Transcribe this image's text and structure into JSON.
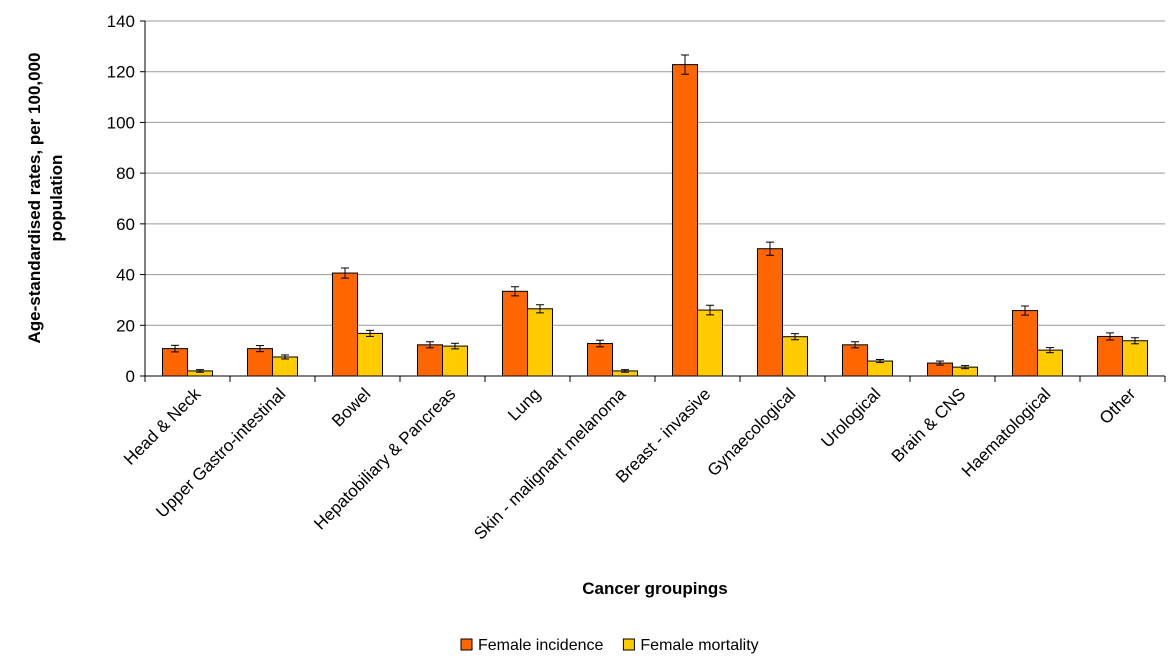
{
  "chart_data": {
    "type": "bar",
    "title": "",
    "xlabel": "Cancer groupings",
    "ylabel_lines": [
      "Age-standardised rates, per 100,000",
      "population"
    ],
    "ylim": [
      0,
      140
    ],
    "yticks": [
      0,
      20,
      40,
      60,
      80,
      100,
      120,
      140
    ],
    "grid": true,
    "legend_position": "bottom",
    "categories": [
      "Head & Neck",
      "Upper Gastro-intestinal",
      "Bowel",
      "Hepatobiliary & Pancreas",
      "Lung",
      "Skin - malignant melanoma",
      "Breast - invasive",
      "Gynaecological",
      "Urological",
      "Brain & CNS",
      "Haematological",
      "Other"
    ],
    "series": [
      {
        "name": "Female incidence",
        "color": "#FF6600",
        "values": [
          10.8,
          10.8,
          40.6,
          12.3,
          33.4,
          12.8,
          122.8,
          50.2,
          12.3,
          5.1,
          25.8,
          15.6
        ],
        "err": [
          1.3,
          1.2,
          2.0,
          1.2,
          1.8,
          1.3,
          3.8,
          2.6,
          1.2,
          0.8,
          1.8,
          1.4
        ]
      },
      {
        "name": "Female mortality",
        "color": "#FFCC00",
        "values": [
          2.0,
          7.5,
          16.8,
          11.8,
          26.5,
          2.0,
          26.0,
          15.5,
          5.9,
          3.5,
          10.2,
          13.9
        ],
        "err": [
          0.5,
          0.8,
          1.2,
          1.1,
          1.6,
          0.5,
          1.9,
          1.2,
          0.6,
          0.6,
          1.0,
          1.2
        ]
      }
    ]
  }
}
